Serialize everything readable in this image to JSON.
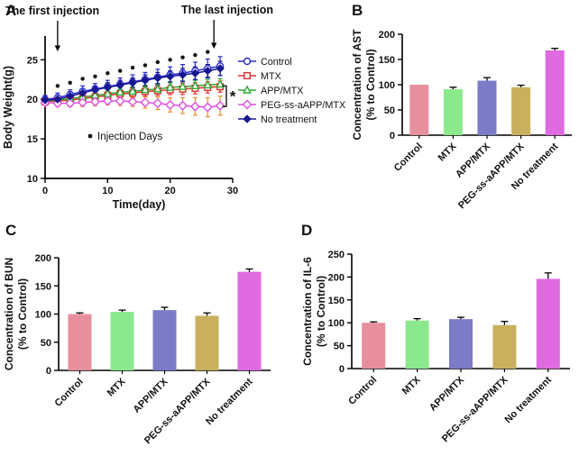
{
  "panels": [
    {
      "id": "A",
      "label": "A"
    },
    {
      "id": "B",
      "label": "B"
    },
    {
      "id": "C",
      "label": "C"
    },
    {
      "id": "D",
      "label": "D"
    }
  ],
  "chart_data": [
    {
      "panel": "A",
      "type": "line",
      "xlabel": "Time(day)",
      "ylabel": "Body Weight(g)",
      "xlim": [
        0,
        30
      ],
      "ylim": [
        10,
        28
      ],
      "xticks": [
        0,
        10,
        20,
        30
      ],
      "yticks": [
        10,
        15,
        20,
        25
      ],
      "x": [
        0,
        2,
        4,
        6,
        8,
        10,
        12,
        14,
        16,
        18,
        20,
        22,
        24,
        26,
        28
      ],
      "series": [
        {
          "name": "Control",
          "color": "#2b2bd0",
          "marker": "circle",
          "fill": "open",
          "values": [
            20.0,
            20.2,
            20.6,
            21.0,
            21.3,
            21.6,
            21.9,
            22.2,
            22.5,
            22.8,
            23.1,
            23.3,
            23.6,
            23.9,
            24.2
          ],
          "errors": [
            0.5,
            0.6,
            0.6,
            0.7,
            0.7,
            0.8,
            0.8,
            0.9,
            0.9,
            1.0,
            1.0,
            1.1,
            1.1,
            1.2,
            1.2
          ]
        },
        {
          "name": "MTX",
          "color": "#e03030",
          "marker": "square",
          "fill": "open",
          "values": [
            19.7,
            19.8,
            19.9,
            20.1,
            20.3,
            20.5,
            20.7,
            20.8,
            21.0,
            21.1,
            21.2,
            21.3,
            21.4,
            21.5,
            21.6
          ],
          "errors": [
            0.4,
            0.4,
            0.4,
            0.5,
            0.5,
            0.5,
            0.5,
            0.6,
            0.6,
            0.6,
            0.6,
            0.7,
            0.7,
            0.7,
            0.7
          ]
        },
        {
          "name": "APP/MTX",
          "color": "#2faa32",
          "marker": "triangle",
          "fill": "open",
          "values": [
            19.8,
            19.9,
            20.1,
            20.3,
            20.5,
            20.7,
            20.9,
            21.0,
            21.2,
            21.3,
            21.5,
            21.6,
            21.7,
            21.8,
            21.9
          ],
          "errors": [
            0.4,
            0.4,
            0.4,
            0.5,
            0.5,
            0.5,
            0.5,
            0.6,
            0.6,
            0.6,
            0.6,
            0.7,
            0.7,
            0.7,
            0.7
          ]
        },
        {
          "name": "PEG-ss-aAPP/MTX",
          "color": "#df4fdf",
          "err_color": "#f08c28",
          "marker": "diamond",
          "fill": "open",
          "values": [
            19.6,
            19.5,
            19.5,
            19.6,
            19.7,
            19.8,
            19.8,
            19.7,
            19.6,
            19.5,
            19.3,
            19.2,
            19.1,
            19.0,
            19.2
          ],
          "errors": [
            0.4,
            0.4,
            0.4,
            0.5,
            0.5,
            0.5,
            0.6,
            0.6,
            0.7,
            0.8,
            0.9,
            1.0,
            1.1,
            1.2,
            1.2
          ]
        },
        {
          "name": "No treatment",
          "color": "#17178f",
          "marker": "diamond",
          "fill": "solid",
          "size": 3.2,
          "values": [
            19.9,
            20.0,
            20.4,
            20.8,
            21.2,
            21.5,
            21.8,
            22.1,
            22.4,
            22.7,
            22.9,
            23.1,
            23.3,
            23.6,
            23.9
          ],
          "errors": [
            0.4,
            0.4,
            0.5,
            0.5,
            0.5,
            0.6,
            0.6,
            0.6,
            0.7,
            0.7,
            0.7,
            0.8,
            0.8,
            0.8,
            0.9
          ]
        }
      ],
      "injection_days": [
        2,
        4,
        6,
        8,
        10,
        12,
        14,
        16,
        18,
        20,
        22,
        24,
        26
      ],
      "annotations": {
        "first_injection": "The first injection",
        "last_injection": "The last injection",
        "injection_days_label": "Injection Days",
        "significance": "*"
      }
    },
    {
      "panel": "B",
      "type": "bar",
      "ylabel_lines": [
        "Concentration of AST",
        "(% to Control)"
      ],
      "categories": [
        "Control",
        "MTX",
        "APP/MTX",
        "PEG-ss-aAPP/MTX",
        "No treatment"
      ],
      "values": [
        100,
        91,
        108,
        95,
        168
      ],
      "errors": [
        0,
        4,
        6,
        4,
        4
      ],
      "colors": [
        "#e78f9d",
        "#8ce88c",
        "#7b7bc8",
        "#c9b05e",
        "#e06ae0"
      ],
      "ylim": [
        0,
        200
      ],
      "yticks": [
        0,
        50,
        100,
        150,
        200
      ]
    },
    {
      "panel": "C",
      "type": "bar",
      "ylabel_lines": [
        "Concentration of BUN",
        "(% to Control)"
      ],
      "categories": [
        "Control",
        "MTX",
        "APP/MTX",
        "PEG-ss-aAPP/MTX",
        "No treatment"
      ],
      "values": [
        100,
        104,
        107,
        97,
        175
      ],
      "errors": [
        2,
        3,
        5,
        5,
        5
      ],
      "colors": [
        "#e78f9d",
        "#8ce88c",
        "#7b7bc8",
        "#c9b05e",
        "#e06ae0"
      ],
      "ylim": [
        0,
        200
      ],
      "yticks": [
        0,
        50,
        100,
        150,
        200
      ]
    },
    {
      "panel": "D",
      "type": "bar",
      "ylabel_lines": [
        "Concentration of IL-6",
        "(% to Control)"
      ],
      "categories": [
        "Control",
        "MTX",
        "APP/MTX",
        "PEG-ss-aAPP/MTX",
        "No treatment"
      ],
      "values": [
        100,
        105,
        108,
        95,
        196
      ],
      "errors": [
        2,
        4,
        4,
        8,
        13
      ],
      "colors": [
        "#e78f9d",
        "#8ce88c",
        "#7b7bc8",
        "#c9b05e",
        "#e06ae0"
      ],
      "ylim": [
        0,
        250
      ],
      "yticks": [
        0,
        50,
        100,
        150,
        200,
        250
      ]
    }
  ]
}
